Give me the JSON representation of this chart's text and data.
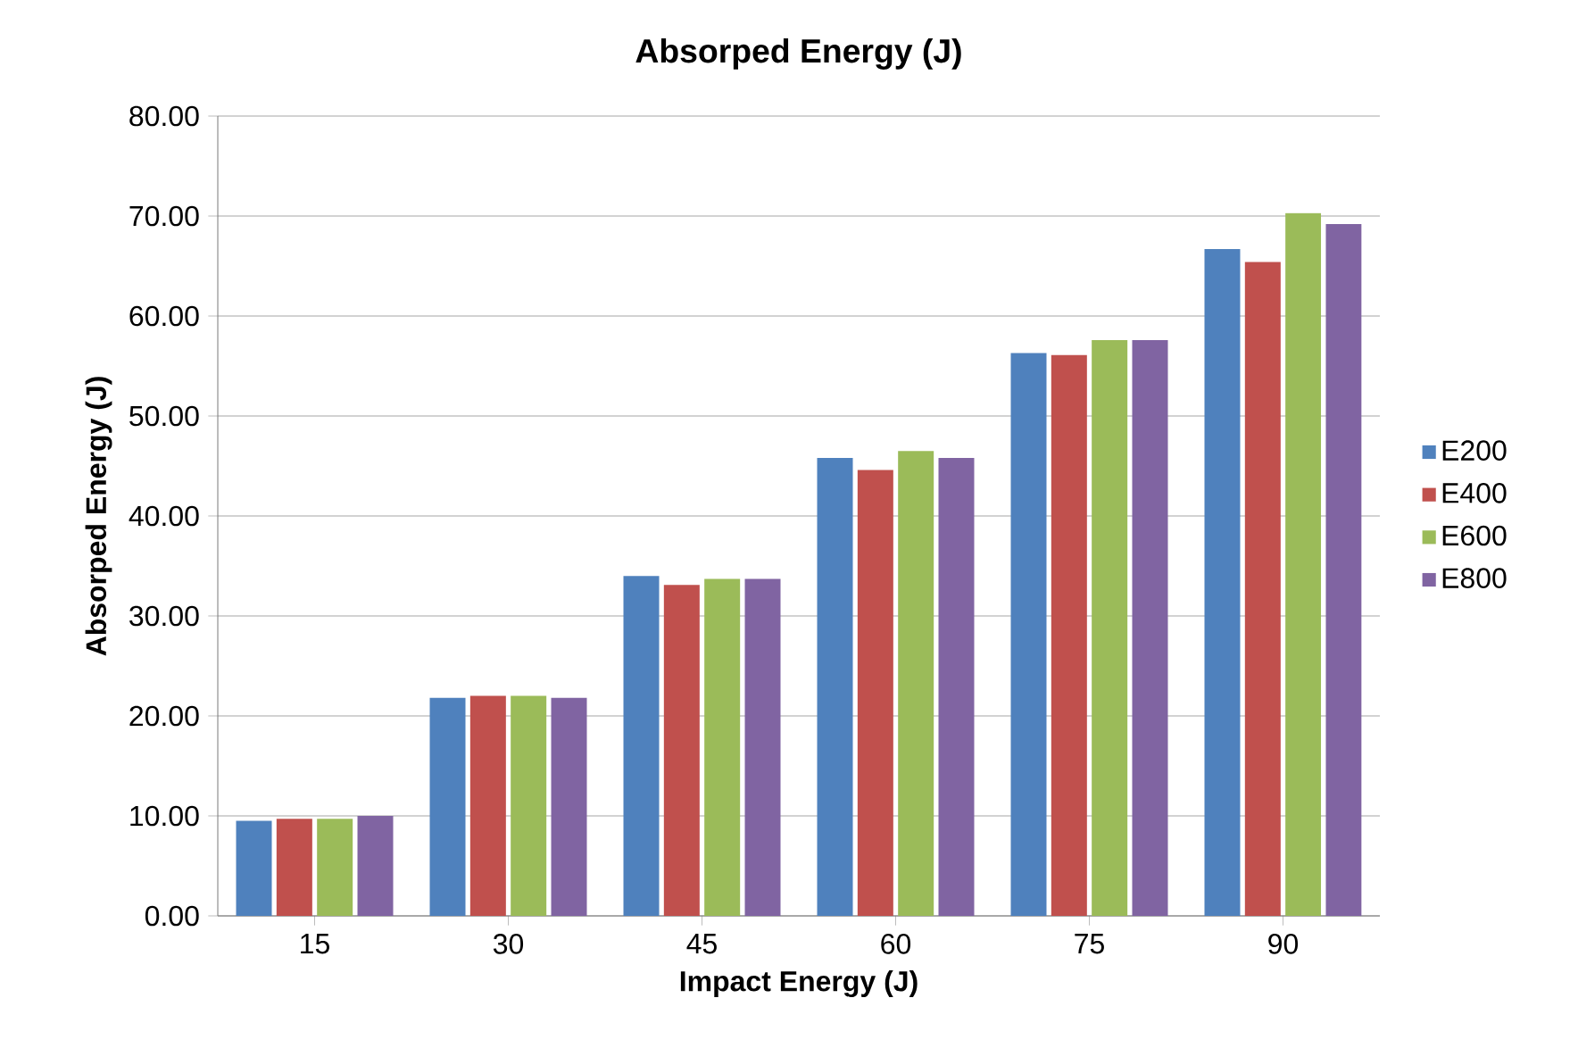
{
  "chart_data": {
    "type": "bar",
    "title": "Absorped Energy (J)",
    "xlabel": "Impact Energy (J)",
    "ylabel": "Absorped Energy (J)",
    "categories": [
      "15",
      "30",
      "45",
      "60",
      "75",
      "90"
    ],
    "series": [
      {
        "name": "E200",
        "color": "#4f81bd",
        "values": [
          9.5,
          21.8,
          34.0,
          45.8,
          56.3,
          66.7
        ]
      },
      {
        "name": "E400",
        "color": "#c0504d",
        "values": [
          9.7,
          22.0,
          33.1,
          44.6,
          56.1,
          65.4
        ]
      },
      {
        "name": "E600",
        "color": "#9bbb59",
        "values": [
          9.7,
          22.0,
          33.7,
          46.5,
          57.6,
          70.3
        ]
      },
      {
        "name": "E800",
        "color": "#8064a2",
        "values": [
          10.0,
          21.8,
          33.7,
          45.8,
          57.6,
          69.2
        ]
      }
    ],
    "ylim": [
      0,
      80
    ],
    "yticks": [
      {
        "value": 0,
        "label": "0.00"
      },
      {
        "value": 10,
        "label": "10.00"
      },
      {
        "value": 20,
        "label": "20.00"
      },
      {
        "value": 30,
        "label": "30.00"
      },
      {
        "value": 40,
        "label": "40.00"
      },
      {
        "value": 50,
        "label": "50.00"
      },
      {
        "value": 60,
        "label": "60.00"
      },
      {
        "value": 70,
        "label": "70.00"
      },
      {
        "value": 80,
        "label": "80.00"
      }
    ],
    "grid": "y",
    "legend": "right"
  }
}
